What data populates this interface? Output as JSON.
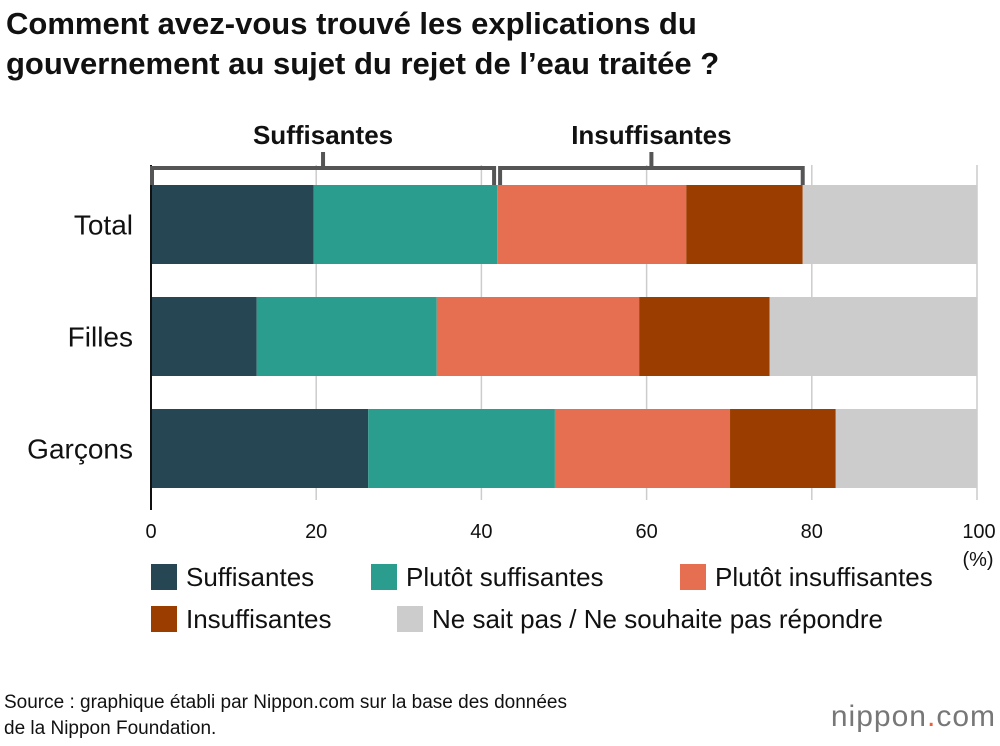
{
  "title_line1": "Comment avez-vous trouvé les explications du",
  "title_line2": "gouvernement au sujet du rejet de l’eau traitée ?",
  "source_line1": "Source : graphique établi par Nippon.com sur la base des données",
  "source_line2": "de la Nippon Foundation.",
  "logo": {
    "name": "nippon",
    "dot": ".",
    "tld": "com"
  },
  "chart_data": {
    "type": "stacked-bar-horizontal",
    "categories": [
      "Total",
      "Filles",
      "Garçons"
    ],
    "series": [
      {
        "name": "Suffisantes",
        "color": "#264653",
        "values": [
          19.7,
          12.8,
          26.3
        ]
      },
      {
        "name": "Plutôt suffisantes",
        "color": "#2a9d8f",
        "values": [
          22.2,
          21.8,
          22.6
        ]
      },
      {
        "name": "Plutôt insuffisantes",
        "color": "#e76f51",
        "values": [
          22.9,
          24.5,
          21.2
        ]
      },
      {
        "name": "Insuffisantes",
        "color": "#9c3d00",
        "values": [
          14.1,
          15.8,
          12.8
        ]
      },
      {
        "name": "Ne sait pas / Ne souhaite pas répondre",
        "color": "#cccccc",
        "values": [
          21.1,
          25.1,
          17.1
        ]
      }
    ],
    "group_labels": [
      "Suffisantes",
      "Insuffisantes"
    ],
    "xlim": [
      0,
      100
    ],
    "xticks": [
      0,
      20,
      40,
      60,
      80,
      100
    ],
    "xunit": "(%)",
    "grid": true,
    "legend": "bottom"
  }
}
